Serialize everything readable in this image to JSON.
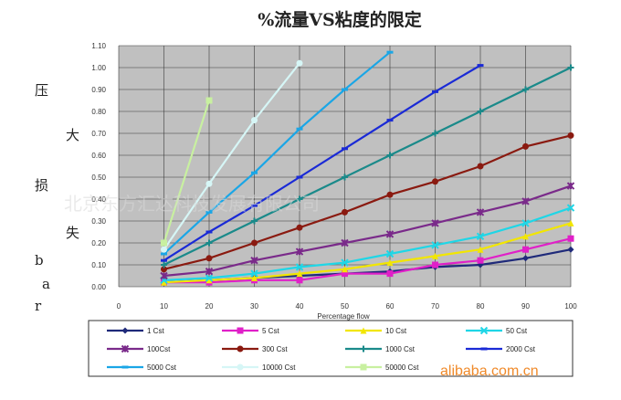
{
  "chart_data": {
    "type": "line",
    "title": "%流量VS粘度的限定",
    "xlabel": "Percentage flow",
    "ylabel_chars": [
      "压",
      "大",
      "损",
      "失",
      "b",
      "a",
      "r"
    ],
    "xlim": [
      0,
      100
    ],
    "ylim": [
      0,
      1.1
    ],
    "x_ticks": [
      "0",
      "10",
      "20",
      "30",
      "40",
      "50",
      "60",
      "70",
      "80",
      "90",
      "100"
    ],
    "y_ticks": [
      "0.00",
      "0.10",
      "0.20",
      "0.30",
      "0.40",
      "0.50",
      "0.60",
      "0.70",
      "0.80",
      "0.90",
      "1.00",
      "1.10"
    ],
    "grid": true,
    "legend_position": "bottom",
    "series": [
      {
        "name": "1 Cst",
        "color": "#1f2a7a",
        "marker": "diamond",
        "x": [
          10,
          20,
          30,
          40,
          50,
          60,
          70,
          80,
          90,
          100
        ],
        "y": [
          0.02,
          0.03,
          0.04,
          0.05,
          0.06,
          0.07,
          0.09,
          0.1,
          0.13,
          0.17
        ]
      },
      {
        "name": "5 Cst",
        "color": "#e020c8",
        "marker": "square",
        "x": [
          10,
          20,
          30,
          40,
          50,
          60,
          70,
          80,
          90,
          100
        ],
        "y": [
          0.02,
          0.02,
          0.03,
          0.03,
          0.06,
          0.06,
          0.1,
          0.12,
          0.17,
          0.22
        ]
      },
      {
        "name": "10 Cst",
        "color": "#f2e600",
        "marker": "triangle",
        "x": [
          10,
          20,
          30,
          40,
          50,
          60,
          70,
          80,
          90,
          100
        ],
        "y": [
          0.02,
          0.03,
          0.04,
          0.06,
          0.08,
          0.11,
          0.14,
          0.17,
          0.23,
          0.29
        ]
      },
      {
        "name": "50 Cst",
        "color": "#1fd6e6",
        "marker": "x",
        "x": [
          10,
          20,
          30,
          40,
          50,
          60,
          70,
          80,
          90,
          100
        ],
        "y": [
          0.03,
          0.04,
          0.06,
          0.09,
          0.11,
          0.15,
          0.19,
          0.23,
          0.29,
          0.36
        ]
      },
      {
        "name": "100Cst",
        "color": "#7a2a8a",
        "marker": "star",
        "x": [
          10,
          20,
          30,
          40,
          50,
          60,
          70,
          80,
          90,
          100
        ],
        "y": [
          0.05,
          0.07,
          0.12,
          0.16,
          0.2,
          0.24,
          0.29,
          0.34,
          0.39,
          0.46
        ]
      },
      {
        "name": "300 Cst",
        "color": "#8a1a10",
        "marker": "circle",
        "x": [
          10,
          20,
          30,
          40,
          50,
          60,
          70,
          80,
          90,
          100
        ],
        "y": [
          0.08,
          0.13,
          0.2,
          0.27,
          0.34,
          0.42,
          0.48,
          0.55,
          0.64,
          0.69
        ]
      },
      {
        "name": "1000 Cst",
        "color": "#1a8a8a",
        "marker": "plus",
        "x": [
          10,
          20,
          30,
          40,
          50,
          60,
          70,
          80,
          90,
          100
        ],
        "y": [
          0.1,
          0.2,
          0.3,
          0.4,
          0.5,
          0.6,
          0.7,
          0.8,
          0.9,
          1.0
        ]
      },
      {
        "name": "2000 Cst",
        "color": "#1a2ad6",
        "marker": "dash",
        "x": [
          10,
          20,
          30,
          40,
          50,
          60,
          70,
          80
        ],
        "y": [
          0.12,
          0.25,
          0.37,
          0.5,
          0.63,
          0.76,
          0.89,
          1.01
        ]
      },
      {
        "name": "5000 Cst",
        "color": "#1aa6e6",
        "marker": "dash",
        "x": [
          10,
          20,
          30,
          40,
          50,
          60
        ],
        "y": [
          0.15,
          0.34,
          0.52,
          0.72,
          0.9,
          1.07
        ]
      },
      {
        "name": "10000 Cst",
        "color": "#d6f6f6",
        "marker": "circle",
        "x": [
          10,
          20,
          30,
          40
        ],
        "y": [
          0.17,
          0.47,
          0.76,
          1.02
        ]
      },
      {
        "name": "50000 Cst",
        "color": "#c8f0a0",
        "marker": "square",
        "x": [
          10,
          20
        ],
        "y": [
          0.2,
          0.85
        ]
      }
    ]
  },
  "watermark": "北京东方汇达科技发展有限公司",
  "site": "alibaba.com.cn",
  "colors": {
    "plot_bg": "#c0c0c0",
    "grid": "#3a3a3a"
  }
}
